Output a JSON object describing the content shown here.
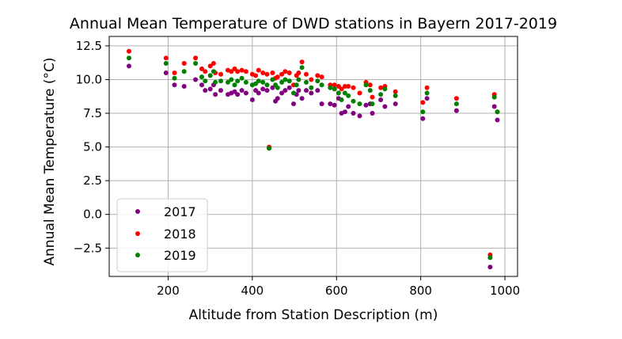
{
  "chart_data": {
    "type": "scatter",
    "title": "Annual Mean Temperature of DWD stations in Bayern 2017-2019",
    "xlabel": "Altitude from Station Description (m)",
    "ylabel": "Annual Mean Temperature (°C)",
    "xlim": [
      60,
      1030
    ],
    "ylim": [
      -4.6,
      13.2
    ],
    "xticks": [
      200,
      400,
      600,
      800,
      1000
    ],
    "xtick_labels": [
      "200",
      "400",
      "600",
      "800",
      "1000"
    ],
    "yticks": [
      -2.5,
      0.0,
      2.5,
      5.0,
      7.5,
      10.0,
      12.5
    ],
    "ytick_labels": [
      "−2.5",
      "0.0",
      "2.5",
      "5.0",
      "7.5",
      "10.0",
      "12.5"
    ],
    "grid": true,
    "legend": "lower-left",
    "series": [
      {
        "name": "2017",
        "color": "#800080",
        "points": [
          [
            107,
            11.0
          ],
          [
            195,
            10.5
          ],
          [
            215,
            9.6
          ],
          [
            238,
            9.5
          ],
          [
            265,
            10.0
          ],
          [
            280,
            9.6
          ],
          [
            288,
            9.2
          ],
          [
            300,
            9.3
          ],
          [
            308,
            9.6
          ],
          [
            312,
            8.9
          ],
          [
            325,
            9.2
          ],
          [
            342,
            8.9
          ],
          [
            350,
            9.0
          ],
          [
            358,
            9.1
          ],
          [
            365,
            8.9
          ],
          [
            375,
            9.2
          ],
          [
            385,
            9.0
          ],
          [
            400,
            8.5
          ],
          [
            408,
            9.2
          ],
          [
            415,
            9.0
          ],
          [
            425,
            9.3
          ],
          [
            435,
            9.2
          ],
          [
            440,
            4.9
          ],
          [
            448,
            9.4
          ],
          [
            455,
            8.4
          ],
          [
            460,
            8.6
          ],
          [
            470,
            9.0
          ],
          [
            478,
            9.2
          ],
          [
            488,
            9.4
          ],
          [
            498,
            8.2
          ],
          [
            505,
            8.9
          ],
          [
            510,
            9.2
          ],
          [
            518,
            8.6
          ],
          [
            528,
            9.2
          ],
          [
            540,
            9.0
          ],
          [
            555,
            9.2
          ],
          [
            565,
            8.2
          ],
          [
            585,
            8.2
          ],
          [
            595,
            8.1
          ],
          [
            605,
            8.6
          ],
          [
            612,
            7.5
          ],
          [
            620,
            7.6
          ],
          [
            628,
            8.0
          ],
          [
            640,
            7.5
          ],
          [
            655,
            7.3
          ],
          [
            670,
            8.1
          ],
          [
            680,
            8.2
          ],
          [
            685,
            7.5
          ],
          [
            705,
            8.5
          ],
          [
            715,
            8.0
          ],
          [
            740,
            8.2
          ],
          [
            805,
            7.1
          ],
          [
            815,
            8.6
          ],
          [
            885,
            7.7
          ],
          [
            965,
            -3.9
          ],
          [
            975,
            8.0
          ],
          [
            982,
            7.0
          ]
        ]
      },
      {
        "name": "2018",
        "color": "#ff0000",
        "points": [
          [
            107,
            12.1
          ],
          [
            195,
            11.6
          ],
          [
            215,
            10.5
          ],
          [
            238,
            11.2
          ],
          [
            265,
            11.6
          ],
          [
            280,
            10.8
          ],
          [
            288,
            10.6
          ],
          [
            300,
            11.0
          ],
          [
            308,
            11.2
          ],
          [
            312,
            10.5
          ],
          [
            325,
            10.4
          ],
          [
            342,
            10.7
          ],
          [
            350,
            10.6
          ],
          [
            358,
            10.8
          ],
          [
            365,
            10.6
          ],
          [
            375,
            10.7
          ],
          [
            385,
            10.6
          ],
          [
            400,
            10.4
          ],
          [
            408,
            10.3
          ],
          [
            415,
            10.7
          ],
          [
            425,
            10.5
          ],
          [
            435,
            10.4
          ],
          [
            440,
            5.0
          ],
          [
            448,
            10.5
          ],
          [
            455,
            10.1
          ],
          [
            460,
            10.2
          ],
          [
            470,
            10.4
          ],
          [
            478,
            10.6
          ],
          [
            488,
            10.5
          ],
          [
            498,
            9.6
          ],
          [
            505,
            10.3
          ],
          [
            510,
            10.5
          ],
          [
            518,
            11.3
          ],
          [
            528,
            10.4
          ],
          [
            540,
            10.0
          ],
          [
            555,
            10.3
          ],
          [
            565,
            10.2
          ],
          [
            585,
            9.6
          ],
          [
            595,
            9.6
          ],
          [
            605,
            9.5
          ],
          [
            612,
            9.3
          ],
          [
            620,
            9.5
          ],
          [
            628,
            9.5
          ],
          [
            640,
            9.4
          ],
          [
            655,
            9.0
          ],
          [
            670,
            9.8
          ],
          [
            680,
            9.6
          ],
          [
            685,
            8.7
          ],
          [
            705,
            9.4
          ],
          [
            715,
            9.5
          ],
          [
            740,
            9.1
          ],
          [
            805,
            8.3
          ],
          [
            815,
            9.4
          ],
          [
            885,
            8.6
          ],
          [
            965,
            -3.0
          ],
          [
            975,
            8.9
          ],
          [
            982,
            7.6
          ]
        ]
      },
      {
        "name": "2019",
        "color": "#008000",
        "points": [
          [
            107,
            11.6
          ],
          [
            195,
            11.2
          ],
          [
            215,
            10.1
          ],
          [
            238,
            10.6
          ],
          [
            265,
            11.2
          ],
          [
            280,
            10.2
          ],
          [
            288,
            9.9
          ],
          [
            300,
            10.3
          ],
          [
            308,
            10.6
          ],
          [
            312,
            9.8
          ],
          [
            325,
            9.9
          ],
          [
            342,
            9.8
          ],
          [
            350,
            10.0
          ],
          [
            358,
            9.6
          ],
          [
            365,
            9.9
          ],
          [
            375,
            10.1
          ],
          [
            385,
            9.8
          ],
          [
            400,
            9.6
          ],
          [
            408,
            9.7
          ],
          [
            415,
            9.9
          ],
          [
            425,
            9.8
          ],
          [
            435,
            9.6
          ],
          [
            440,
            4.9
          ],
          [
            448,
            10.0
          ],
          [
            455,
            9.6
          ],
          [
            460,
            9.4
          ],
          [
            470,
            9.8
          ],
          [
            478,
            10.0
          ],
          [
            488,
            9.9
          ],
          [
            498,
            9.0
          ],
          [
            505,
            9.6
          ],
          [
            510,
            10.0
          ],
          [
            518,
            10.9
          ],
          [
            528,
            9.8
          ],
          [
            540,
            9.4
          ],
          [
            555,
            9.9
          ],
          [
            565,
            9.6
          ],
          [
            585,
            9.4
          ],
          [
            595,
            9.3
          ],
          [
            605,
            9.0
          ],
          [
            612,
            8.5
          ],
          [
            620,
            9.0
          ],
          [
            628,
            8.8
          ],
          [
            640,
            8.4
          ],
          [
            655,
            8.2
          ],
          [
            670,
            9.6
          ],
          [
            680,
            9.2
          ],
          [
            685,
            8.2
          ],
          [
            705,
            8.9
          ],
          [
            715,
            9.3
          ],
          [
            740,
            8.8
          ],
          [
            805,
            7.6
          ],
          [
            815,
            9.0
          ],
          [
            885,
            8.2
          ],
          [
            965,
            -3.2
          ],
          [
            975,
            8.7
          ],
          [
            982,
            7.6
          ]
        ]
      }
    ]
  }
}
